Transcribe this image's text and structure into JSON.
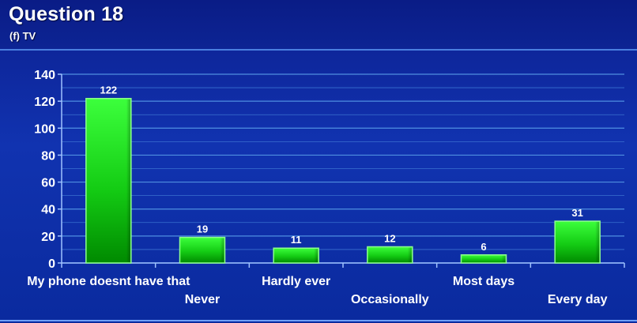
{
  "header": {
    "title": "Question 18",
    "subtitle": "(f) TV"
  },
  "colors": {
    "background": "#1133b0",
    "bar_top": "#33ff33",
    "bar_bottom": "#009900",
    "gridline": "#4f8fe0"
  },
  "chart_data": {
    "type": "bar",
    "title": "",
    "xlabel": "",
    "ylabel": "",
    "categories": [
      "My phone doesnt have that",
      "Never",
      "Hardly ever",
      "Occasionally",
      "Most days",
      "Every day"
    ],
    "values": [
      122,
      19,
      11,
      12,
      6,
      31
    ],
    "ylim": [
      0,
      140
    ],
    "yticks": [
      0,
      20,
      40,
      60,
      80,
      100,
      120,
      140
    ],
    "grid": true,
    "legend": "none"
  }
}
